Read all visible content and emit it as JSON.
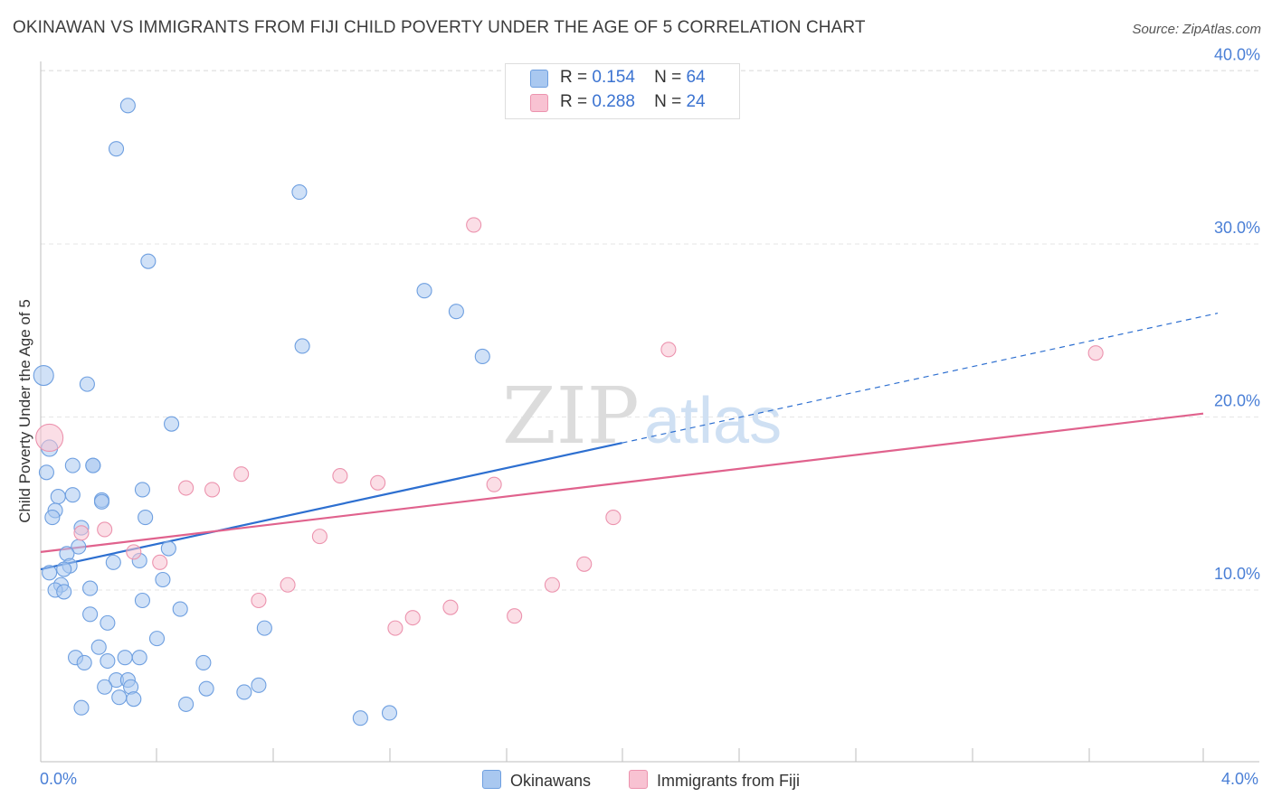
{
  "title": "OKINAWAN VS IMMIGRANTS FROM FIJI CHILD POVERTY UNDER THE AGE OF 5 CORRELATION CHART",
  "source": "Source: ZipAtlas.com",
  "watermark": {
    "zip": "ZIP",
    "atlas": "atlas"
  },
  "legend_top": {
    "rows": [
      {
        "r_label": "R =",
        "r_value": "0.154",
        "n_label": "N =",
        "n_value": "64"
      },
      {
        "r_label": "R =",
        "r_value": "0.288",
        "n_label": "N =",
        "n_value": "24"
      }
    ]
  },
  "legend_bottom": [
    "Okinawans",
    "Immigrants from Fiji"
  ],
  "colors": {
    "okinawan_fill": "#a9c8f0",
    "okinawan_stroke": "#6e9fe0",
    "okinawan_line": "#2d6fd0",
    "fiji_fill": "#f8c2d2",
    "fiji_stroke": "#ec93ae",
    "fiji_line": "#e0628d",
    "tick_text": "#4a7fd6",
    "grid": "#e6e6e6"
  },
  "chart_data": {
    "type": "scatter",
    "title": "OKINAWAN VS IMMIGRANTS FROM FIJI CHILD POVERTY UNDER THE AGE OF 5 CORRELATION CHART",
    "xlabel": "",
    "ylabel": "Child Poverty Under the Age of 5",
    "xlim": [
      0,
      4.0
    ],
    "ylim": [
      0,
      40.0
    ],
    "x_tick_labels": [
      "0.0%",
      "4.0%"
    ],
    "y_ticks": [
      10,
      20,
      30,
      40
    ],
    "y_tick_labels": [
      "10.0%",
      "20.0%",
      "30.0%",
      "40.0%"
    ],
    "grid": true,
    "legend_position": "top-center",
    "series": [
      {
        "name": "Okinawans",
        "r": 0.154,
        "n": 64,
        "trend": {
          "x0": 0.0,
          "y0": 11.2,
          "x1": 2.0,
          "y1": 18.5,
          "dashed_to_x": 4.0,
          "dashed_to_y": 26.0
        },
        "points": [
          [
            0.01,
            22.4,
            11
          ],
          [
            0.03,
            18.2,
            9
          ],
          [
            0.02,
            16.8,
            8
          ],
          [
            0.3,
            38.0,
            8
          ],
          [
            0.26,
            35.5,
            8
          ],
          [
            0.89,
            33.0,
            8
          ],
          [
            0.37,
            29.0,
            8
          ],
          [
            0.9,
            24.1,
            8
          ],
          [
            1.32,
            27.3,
            8
          ],
          [
            1.43,
            26.1,
            8
          ],
          [
            1.52,
            23.5,
            8
          ],
          [
            0.16,
            21.9,
            8
          ],
          [
            0.45,
            19.6,
            8
          ],
          [
            0.11,
            17.2,
            8
          ],
          [
            0.18,
            17.2,
            8
          ],
          [
            0.18,
            17.2,
            8
          ],
          [
            0.35,
            15.8,
            8
          ],
          [
            0.06,
            15.4,
            8
          ],
          [
            0.11,
            15.5,
            8
          ],
          [
            0.21,
            15.2,
            8
          ],
          [
            0.21,
            15.1,
            8
          ],
          [
            0.05,
            14.6,
            8
          ],
          [
            0.04,
            14.2,
            8
          ],
          [
            0.36,
            14.2,
            8
          ],
          [
            0.14,
            13.6,
            8
          ],
          [
            0.13,
            12.5,
            8
          ],
          [
            0.44,
            12.4,
            8
          ],
          [
            0.09,
            12.1,
            8
          ],
          [
            0.34,
            11.7,
            8
          ],
          [
            0.25,
            11.6,
            8
          ],
          [
            0.1,
            11.4,
            8
          ],
          [
            0.08,
            11.2,
            8
          ],
          [
            0.03,
            11.0,
            8
          ],
          [
            0.42,
            10.6,
            8
          ],
          [
            0.07,
            10.3,
            8
          ],
          [
            0.05,
            10.0,
            8
          ],
          [
            0.08,
            9.9,
            8
          ],
          [
            0.17,
            10.1,
            8
          ],
          [
            0.35,
            9.4,
            8
          ],
          [
            0.48,
            8.9,
            8
          ],
          [
            0.17,
            8.6,
            8
          ],
          [
            0.23,
            8.1,
            8
          ],
          [
            0.77,
            7.8,
            8
          ],
          [
            0.4,
            7.2,
            8
          ],
          [
            0.2,
            6.7,
            8
          ],
          [
            0.12,
            6.1,
            8
          ],
          [
            0.29,
            6.1,
            8
          ],
          [
            0.34,
            6.1,
            8
          ],
          [
            0.15,
            5.8,
            8
          ],
          [
            0.23,
            5.9,
            8
          ],
          [
            0.56,
            5.8,
            8
          ],
          [
            0.26,
            4.8,
            8
          ],
          [
            0.3,
            4.8,
            8
          ],
          [
            0.22,
            4.4,
            8
          ],
          [
            0.31,
            4.4,
            8
          ],
          [
            0.57,
            4.3,
            8
          ],
          [
            0.75,
            4.5,
            8
          ],
          [
            0.7,
            4.1,
            8
          ],
          [
            0.27,
            3.8,
            8
          ],
          [
            0.32,
            3.7,
            8
          ],
          [
            0.5,
            3.4,
            8
          ],
          [
            0.14,
            3.2,
            8
          ],
          [
            1.2,
            2.9,
            8
          ],
          [
            1.1,
            2.6,
            8
          ]
        ]
      },
      {
        "name": "Immigrants from Fiji",
        "r": 0.288,
        "n": 24,
        "trend": {
          "x0": 0.0,
          "y0": 12.2,
          "x1": 4.0,
          "y1": 20.2
        },
        "points": [
          [
            0.03,
            18.8,
            15
          ],
          [
            1.49,
            31.1,
            8
          ],
          [
            2.16,
            23.9,
            8
          ],
          [
            3.63,
            23.7,
            8
          ],
          [
            0.69,
            16.7,
            8
          ],
          [
            1.03,
            16.6,
            8
          ],
          [
            1.16,
            16.2,
            8
          ],
          [
            1.56,
            16.1,
            8
          ],
          [
            0.5,
            15.9,
            8
          ],
          [
            0.59,
            15.8,
            8
          ],
          [
            1.97,
            14.2,
            8
          ],
          [
            0.22,
            13.5,
            8
          ],
          [
            0.14,
            13.3,
            8
          ],
          [
            0.96,
            13.1,
            8
          ],
          [
            0.32,
            12.2,
            8
          ],
          [
            0.41,
            11.6,
            8
          ],
          [
            1.87,
            11.5,
            8
          ],
          [
            0.85,
            10.3,
            8
          ],
          [
            1.76,
            10.3,
            8
          ],
          [
            0.75,
            9.4,
            8
          ],
          [
            1.41,
            9.0,
            8
          ],
          [
            1.28,
            8.4,
            8
          ],
          [
            1.63,
            8.5,
            8
          ],
          [
            1.22,
            7.8,
            8
          ]
        ]
      }
    ]
  }
}
